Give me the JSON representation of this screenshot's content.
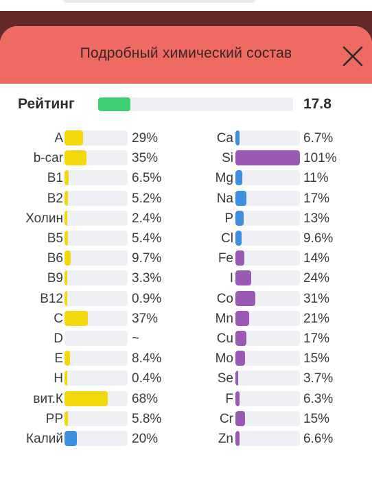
{
  "modal": {
    "title": "Подробный химический состав"
  },
  "rating": {
    "label": "Рейтинг",
    "value": "17.8",
    "fraction": 0.178
  },
  "colors": {
    "yellow": "#f3d80b",
    "blue": "#3d8fe0",
    "purple": "#9b59b6",
    "green": "#3ecf72",
    "header": "#ef6a63"
  },
  "left_column": [
    {
      "name": "A",
      "percent": "29%",
      "value": 29,
      "color": "yellow"
    },
    {
      "name": "b-car",
      "percent": "35%",
      "value": 35,
      "color": "yellow"
    },
    {
      "name": "B1",
      "percent": "6.5%",
      "value": 6.5,
      "color": "yellow"
    },
    {
      "name": "B2",
      "percent": "5.2%",
      "value": 5.2,
      "color": "yellow"
    },
    {
      "name": "Холин",
      "percent": "2.4%",
      "value": 2.4,
      "color": "yellow"
    },
    {
      "name": "B5",
      "percent": "5.4%",
      "value": 5.4,
      "color": "yellow"
    },
    {
      "name": "B6",
      "percent": "9.7%",
      "value": 9.7,
      "color": "yellow"
    },
    {
      "name": "B9",
      "percent": "3.3%",
      "value": 3.3,
      "color": "yellow"
    },
    {
      "name": "B12",
      "percent": "0.9%",
      "value": 0.9,
      "color": "yellow"
    },
    {
      "name": "C",
      "percent": "37%",
      "value": 37,
      "color": "yellow"
    },
    {
      "name": "D",
      "percent": "~",
      "value": 0,
      "color": "yellow"
    },
    {
      "name": "E",
      "percent": "8.4%",
      "value": 8.4,
      "color": "yellow"
    },
    {
      "name": "H",
      "percent": "0.4%",
      "value": 0.4,
      "color": "yellow"
    },
    {
      "name": "вит.К",
      "percent": "68%",
      "value": 68,
      "color": "yellow"
    },
    {
      "name": "PP",
      "percent": "5.8%",
      "value": 5.8,
      "color": "yellow"
    },
    {
      "name": "Калий",
      "percent": "20%",
      "value": 20,
      "color": "blue"
    }
  ],
  "right_column": [
    {
      "name": "Ca",
      "percent": "6.7%",
      "value": 6.7,
      "color": "blue"
    },
    {
      "name": "Si",
      "percent": "101%",
      "value": 101,
      "color": "purple"
    },
    {
      "name": "Mg",
      "percent": "11%",
      "value": 11,
      "color": "blue"
    },
    {
      "name": "Na",
      "percent": "17%",
      "value": 17,
      "color": "blue"
    },
    {
      "name": "P",
      "percent": "13%",
      "value": 13,
      "color": "blue"
    },
    {
      "name": "Cl",
      "percent": "9.6%",
      "value": 9.6,
      "color": "blue"
    },
    {
      "name": "Fe",
      "percent": "14%",
      "value": 14,
      "color": "purple"
    },
    {
      "name": "I",
      "percent": "24%",
      "value": 24,
      "color": "purple"
    },
    {
      "name": "Co",
      "percent": "31%",
      "value": 31,
      "color": "purple"
    },
    {
      "name": "Mn",
      "percent": "21%",
      "value": 21,
      "color": "purple"
    },
    {
      "name": "Cu",
      "percent": "17%",
      "value": 17,
      "color": "purple"
    },
    {
      "name": "Mo",
      "percent": "15%",
      "value": 15,
      "color": "purple"
    },
    {
      "name": "Se",
      "percent": "3.7%",
      "value": 3.7,
      "color": "purple"
    },
    {
      "name": "F",
      "percent": "6.3%",
      "value": 6.3,
      "color": "purple"
    },
    {
      "name": "Cr",
      "percent": "15%",
      "value": 15,
      "color": "purple"
    },
    {
      "name": "Zn",
      "percent": "6.6%",
      "value": 6.6,
      "color": "purple"
    }
  ]
}
